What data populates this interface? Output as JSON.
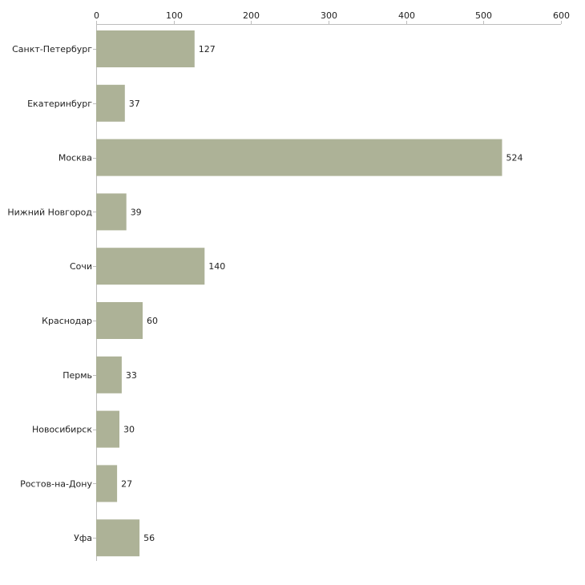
{
  "chart_data": {
    "type": "bar",
    "orientation": "horizontal",
    "title": "",
    "xlabel": "",
    "ylabel": "",
    "xlim": [
      0,
      600
    ],
    "x_ticks": [
      0,
      100,
      200,
      300,
      400,
      500,
      600
    ],
    "x_axis_position": "top",
    "grid": false,
    "categories": [
      "Санкт-Петербург",
      "Екатеринбург",
      "Москва",
      "Нижний Новгород",
      "Сочи",
      "Краснодар",
      "Пермь",
      "Новосибирск",
      "Ростов-на-Дону",
      "Уфа"
    ],
    "values": [
      127,
      37,
      524,
      39,
      140,
      60,
      33,
      30,
      27,
      56
    ],
    "colors": {
      "bar": "#adb297",
      "axis": "#bdbdbd",
      "text": "#222222"
    }
  }
}
